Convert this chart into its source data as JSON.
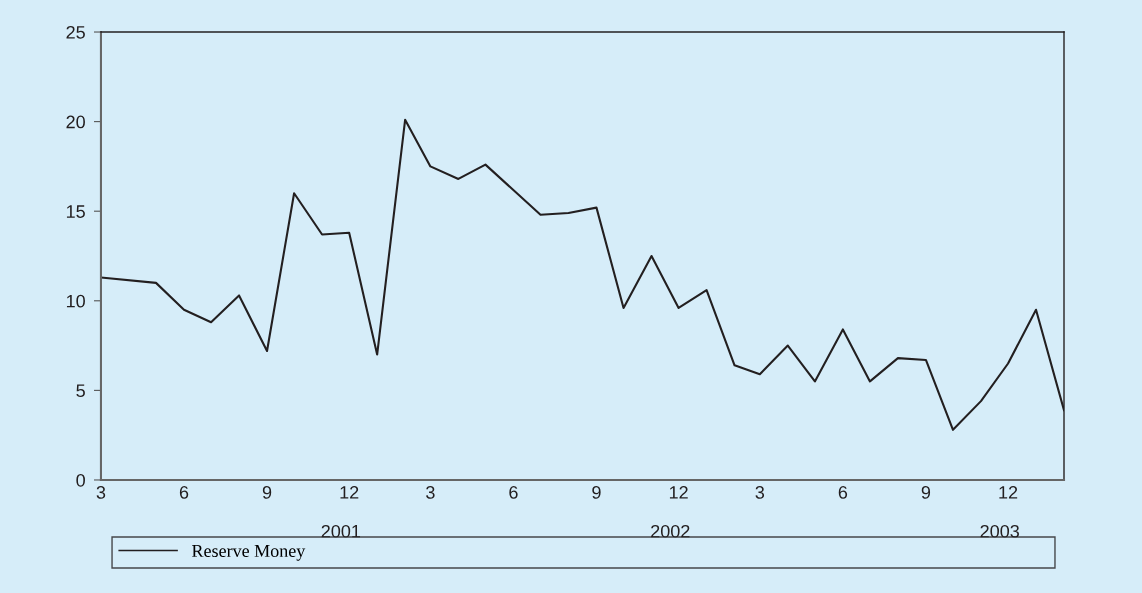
{
  "chart_data": {
    "type": "line",
    "x": [
      "2001-03",
      "2001-05",
      "2001-06",
      "2001-07",
      "2001-08",
      "2001-09",
      "2001-10",
      "2001-11",
      "2001-12",
      "2002-01",
      "2002-02",
      "2002-03",
      "2002-04",
      "2002-05",
      "2002-07",
      "2002-08",
      "2002-09",
      "2002-10",
      "2002-11",
      "2002-12",
      "2003-01",
      "2003-02",
      "2003-03",
      "2003-04",
      "2003-05",
      "2003-06",
      "2003-07",
      "2003-08",
      "2003-09",
      "2003-10",
      "2003-11",
      "2003-12",
      "2004-01",
      "2004-02"
    ],
    "series": [
      {
        "name": "Reserve Money",
        "color": "#231f20",
        "values": [
          11.3,
          11.0,
          9.5,
          8.8,
          10.3,
          7.2,
          16.0,
          13.7,
          13.8,
          7.0,
          20.1,
          17.5,
          16.8,
          17.6,
          14.8,
          14.9,
          15.2,
          9.6,
          12.5,
          9.6,
          10.6,
          6.4,
          5.9,
          7.5,
          5.5,
          8.4,
          5.5,
          6.8,
          6.7,
          2.8,
          4.4,
          6.5,
          9.5,
          3.9
        ]
      }
    ],
    "xlim": [
      "2001-03",
      "2004-02"
    ],
    "xticks": [
      {
        "value": "2001-03",
        "label": "3"
      },
      {
        "value": "2001-06",
        "label": "6"
      },
      {
        "value": "2001-09",
        "label": "9"
      },
      {
        "value": "2001-12",
        "label": "12"
      },
      {
        "value": "2002-03",
        "label": "3"
      },
      {
        "value": "2002-06",
        "label": "6"
      },
      {
        "value": "2002-09",
        "label": "9"
      },
      {
        "value": "2002-12",
        "label": "12"
      },
      {
        "value": "2003-03",
        "label": "3"
      },
      {
        "value": "2003-06",
        "label": "6"
      },
      {
        "value": "2003-09",
        "label": "9"
      },
      {
        "value": "2003-12",
        "label": "12"
      }
    ],
    "annotations": [
      "2001",
      "2002",
      "2003"
    ],
    "ylim": [
      0,
      25
    ],
    "yticks": [
      0,
      5,
      10,
      15,
      20,
      25
    ],
    "grid": false,
    "legend": "bottom",
    "marker": "none",
    "line_style": "solid"
  }
}
